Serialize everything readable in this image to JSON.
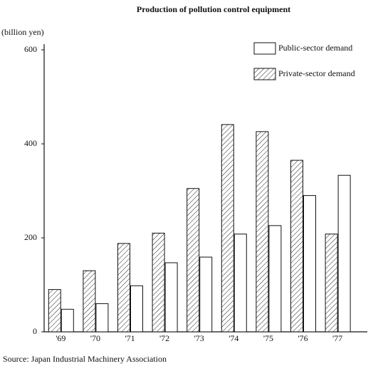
{
  "chart_data": {
    "type": "bar",
    "title": "Production of pollution control equipment",
    "ylabel": "(billion yen)",
    "source": "Source: Japan Industrial Machinery Association",
    "categories": [
      "'69",
      "'70",
      "'71",
      "'72",
      "'73",
      "'74",
      "'75",
      "'76",
      "'77"
    ],
    "series": [
      {
        "name": "Private-sector demand",
        "color": "#ffffff",
        "fill": "hatch",
        "values": [
          90,
          130,
          188,
          210,
          305,
          441,
          426,
          365,
          208
        ]
      },
      {
        "name": "Public-sector demand",
        "color": "#ffffff",
        "fill": "solid",
        "values": [
          48,
          60,
          98,
          147,
          159,
          208,
          226,
          290,
          333
        ]
      }
    ],
    "ylim": [
      0,
      600
    ],
    "yticks": [
      0,
      200,
      400,
      600
    ],
    "grid": false
  }
}
